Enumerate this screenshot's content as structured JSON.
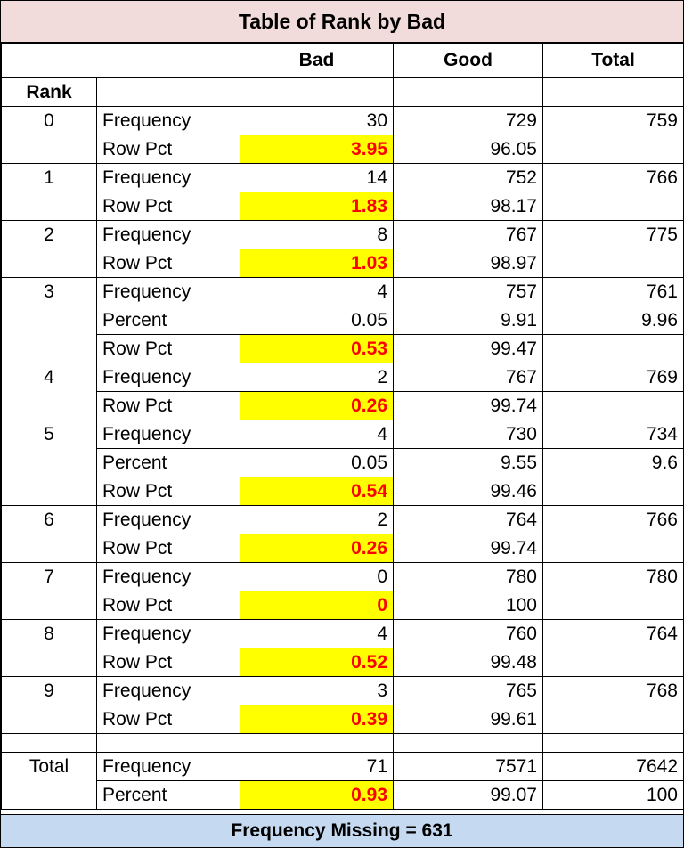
{
  "title": "Table of Rank by Bad",
  "headers": {
    "rank": "Rank",
    "bad": "Bad",
    "good": "Good",
    "total": "Total"
  },
  "groups": [
    {
      "rank": "0",
      "rows": [
        {
          "stat": "Frequency",
          "bad": "30",
          "good": "729",
          "total": "759"
        },
        {
          "stat": "Row Pct",
          "bad": "3.95",
          "good": "96.05",
          "total": "",
          "highlight": true
        }
      ]
    },
    {
      "rank": "1",
      "rows": [
        {
          "stat": "Frequency",
          "bad": "14",
          "good": "752",
          "total": "766"
        },
        {
          "stat": "Row Pct",
          "bad": "1.83",
          "good": "98.17",
          "total": "",
          "highlight": true
        }
      ]
    },
    {
      "rank": "2",
      "rows": [
        {
          "stat": "Frequency",
          "bad": "8",
          "good": "767",
          "total": "775"
        },
        {
          "stat": "Row Pct",
          "bad": "1.03",
          "good": "98.97",
          "total": "",
          "highlight": true
        }
      ]
    },
    {
      "rank": "3",
      "rows": [
        {
          "stat": "Frequency",
          "bad": "4",
          "good": "757",
          "total": "761"
        },
        {
          "stat": "Percent",
          "bad": "0.05",
          "good": "9.91",
          "total": "9.96"
        },
        {
          "stat": "Row Pct",
          "bad": "0.53",
          "good": "99.47",
          "total": "",
          "highlight": true
        }
      ]
    },
    {
      "rank": "4",
      "rows": [
        {
          "stat": "Frequency",
          "bad": "2",
          "good": "767",
          "total": "769"
        },
        {
          "stat": "Row Pct",
          "bad": "0.26",
          "good": "99.74",
          "total": "",
          "highlight": true
        }
      ]
    },
    {
      "rank": "5",
      "rows": [
        {
          "stat": "Frequency",
          "bad": "4",
          "good": "730",
          "total": "734"
        },
        {
          "stat": "Percent",
          "bad": "0.05",
          "good": "9.55",
          "total": "9.6"
        },
        {
          "stat": "Row Pct",
          "bad": "0.54",
          "good": "99.46",
          "total": "",
          "highlight": true
        }
      ]
    },
    {
      "rank": "6",
      "rows": [
        {
          "stat": "Frequency",
          "bad": "2",
          "good": "764",
          "total": "766"
        },
        {
          "stat": "Row Pct",
          "bad": "0.26",
          "good": "99.74",
          "total": "",
          "highlight": true
        }
      ]
    },
    {
      "rank": "7",
      "rows": [
        {
          "stat": "Frequency",
          "bad": "0",
          "good": "780",
          "total": "780"
        },
        {
          "stat": "Row Pct",
          "bad": "0",
          "good": "100",
          "total": "",
          "highlight": true
        }
      ]
    },
    {
      "rank": "8",
      "rows": [
        {
          "stat": "Frequency",
          "bad": "4",
          "good": "760",
          "total": "764"
        },
        {
          "stat": "Row Pct",
          "bad": "0.52",
          "good": "99.48",
          "total": "",
          "highlight": true
        }
      ]
    },
    {
      "rank": "9",
      "rows": [
        {
          "stat": "Frequency",
          "bad": "3",
          "good": "765",
          "total": "768"
        },
        {
          "stat": "Row Pct",
          "bad": "0.39",
          "good": "99.61",
          "total": "",
          "highlight": true
        }
      ]
    },
    {
      "rank": "Total",
      "spacer": true,
      "rows": [
        {
          "stat": "Frequency",
          "bad": "71",
          "good": "7571",
          "total": "7642"
        },
        {
          "stat": "Percent",
          "bad": "0.93",
          "good": "99.07",
          "total": "100",
          "highlight": true
        }
      ]
    }
  ],
  "footer": "Frequency Missing = 631",
  "colors": {
    "title_bg": "#f2dcdb",
    "footer_bg": "#c5d9f1",
    "highlight_bg": "#ffff00",
    "highlight_text": "#ff0000"
  }
}
